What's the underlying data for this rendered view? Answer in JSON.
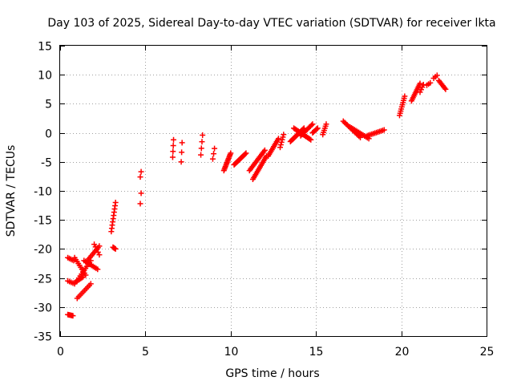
{
  "chart_data": {
    "type": "scatter",
    "title": "Day 103 of 2025, Sidereal Day-to-day VTEC variation (SDTVAR) for receiver lkta",
    "xlabel": "GPS time / hours",
    "ylabel": "SDTVAR / TECUs",
    "xlim": [
      0,
      25
    ],
    "ylim": [
      -35,
      15
    ],
    "xticks": [
      0,
      5,
      10,
      15,
      20,
      25
    ],
    "yticks": [
      -35,
      -30,
      -25,
      -20,
      -15,
      -10,
      -5,
      0,
      5,
      10,
      15
    ],
    "grid": true,
    "marker": "plus",
    "color": "#ff0000",
    "segments": [
      {
        "x0": 0.45,
        "x1": 0.75,
        "y0": -31.3,
        "y1": -31.5,
        "n": 6
      },
      {
        "x0": 0.45,
        "x1": 0.8,
        "y0": -21.5,
        "y1": -22.0,
        "n": 5
      },
      {
        "x0": 0.45,
        "x1": 0.85,
        "y0": -25.5,
        "y1": -26.0,
        "n": 5
      },
      {
        "x0": 0.85,
        "x1": 1.5,
        "y0": -21.5,
        "y1": -24.5,
        "n": 10
      },
      {
        "x0": 0.85,
        "x1": 1.35,
        "y0": -25.8,
        "y1": -24.8,
        "n": 8
      },
      {
        "x0": 1.0,
        "x1": 1.8,
        "y0": -28.5,
        "y1": -26.0,
        "n": 10
      },
      {
        "x0": 1.1,
        "x1": 1.8,
        "y0": -25.0,
        "y1": -22.0,
        "n": 10
      },
      {
        "x0": 1.4,
        "x1": 2.2,
        "y0": -22.0,
        "y1": -23.5,
        "n": 10
      },
      {
        "x0": 1.6,
        "x1": 2.3,
        "y0": -22.0,
        "y1": -19.5,
        "n": 10
      },
      {
        "x0": 2.0,
        "x1": 2.3,
        "y0": -19.2,
        "y1": -21.0,
        "n": 5
      },
      {
        "x0": 3.0,
        "x1": 3.25,
        "y0": -17.0,
        "y1": -12.0,
        "n": 10
      },
      {
        "x0": 3.1,
        "x1": 3.25,
        "y0": -19.7,
        "y1": -20.0,
        "n": 4
      },
      {
        "x0": 4.7,
        "x1": 4.75,
        "y0": -12.2,
        "y1": -10.4,
        "n": 2
      },
      {
        "x0": 4.7,
        "x1": 4.75,
        "y0": -7.6,
        "y1": -6.7,
        "n": 2
      },
      {
        "x0": 6.6,
        "x1": 6.65,
        "y0": -4.2,
        "y1": -1.2,
        "n": 4
      },
      {
        "x0": 7.1,
        "x1": 7.15,
        "y0": -5.0,
        "y1": -1.7,
        "n": 3
      },
      {
        "x0": 8.25,
        "x1": 8.35,
        "y0": -3.8,
        "y1": -0.4,
        "n": 4
      },
      {
        "x0": 8.95,
        "x1": 9.05,
        "y0": -4.5,
        "y1": -2.7,
        "n": 3
      },
      {
        "x0": 9.6,
        "x1": 10.0,
        "y0": -6.5,
        "y1": -3.5,
        "n": 14
      },
      {
        "x0": 10.2,
        "x1": 10.9,
        "y0": -5.5,
        "y1": -3.5,
        "n": 14
      },
      {
        "x0": 11.1,
        "x1": 12.0,
        "y0": -6.5,
        "y1": -3.0,
        "n": 16
      },
      {
        "x0": 11.3,
        "x1": 12.1,
        "y0": -8.0,
        "y1": -4.0,
        "n": 16
      },
      {
        "x0": 12.2,
        "x1": 12.8,
        "y0": -4.0,
        "y1": -1.0,
        "n": 12
      },
      {
        "x0": 12.9,
        "x1": 13.1,
        "y0": -2.5,
        "y1": -0.3,
        "n": 6
      },
      {
        "x0": 13.5,
        "x1": 14.3,
        "y0": -1.5,
        "y1": 0.8,
        "n": 16
      },
      {
        "x0": 13.7,
        "x1": 14.7,
        "y0": 0.8,
        "y1": -1.2,
        "n": 16
      },
      {
        "x0": 14.1,
        "x1": 14.8,
        "y0": -0.5,
        "y1": 1.5,
        "n": 12
      },
      {
        "x0": 14.8,
        "x1": 15.1,
        "y0": 0.0,
        "y1": 0.8,
        "n": 6
      },
      {
        "x0": 15.4,
        "x1": 15.6,
        "y0": -0.3,
        "y1": 1.5,
        "n": 6
      },
      {
        "x0": 16.6,
        "x1": 17.6,
        "y0": 2.0,
        "y1": -0.8,
        "n": 14
      },
      {
        "x0": 17.0,
        "x1": 18.1,
        "y0": 1.0,
        "y1": -1.0,
        "n": 14
      },
      {
        "x0": 18.0,
        "x1": 19.0,
        "y0": -0.5,
        "y1": 0.5,
        "n": 12
      },
      {
        "x0": 19.9,
        "x1": 20.2,
        "y0": 3.0,
        "y1": 6.3,
        "n": 10
      },
      {
        "x0": 20.6,
        "x1": 21.1,
        "y0": 5.5,
        "y1": 8.5,
        "n": 12
      },
      {
        "x0": 21.1,
        "x1": 21.3,
        "y0": 7.0,
        "y1": 8.3,
        "n": 4
      },
      {
        "x0": 21.5,
        "x1": 21.7,
        "y0": 8.2,
        "y1": 8.6,
        "n": 3
      },
      {
        "x0": 21.9,
        "x1": 22.1,
        "y0": 9.4,
        "y1": 9.9,
        "n": 3
      },
      {
        "x0": 22.2,
        "x1": 22.6,
        "y0": 9.0,
        "y1": 7.5,
        "n": 8
      }
    ]
  }
}
